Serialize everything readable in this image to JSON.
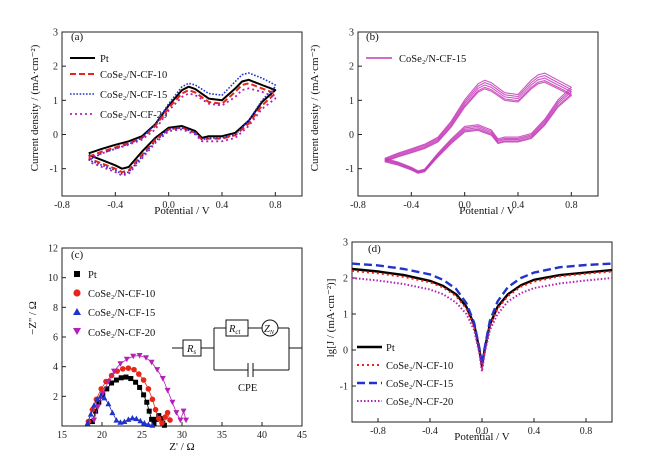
{
  "figure": {
    "colors": {
      "pt": "#000000",
      "cf10": "#e8251b",
      "cf15": "#2233cc",
      "cf20": "#b51fb8",
      "single": "#c43ab9"
    }
  },
  "chart_data": [
    {
      "panel": "(a)",
      "type": "line",
      "xlabel": "Potential / V",
      "ylabel": "Current density / (mA·cm⁻²)",
      "xlim": [
        -0.8,
        1.0
      ],
      "ylim": [
        -1.8,
        3.0
      ],
      "xticks": [
        "-0.8",
        "-0.4",
        "0.0",
        "0.4",
        "0.8"
      ],
      "yticks": [
        "-1",
        "0",
        "1",
        "2",
        "3"
      ],
      "legend": [
        "Pt",
        "CoSe₂/N-CF-10",
        "CoSe₂/N-CF-15",
        "CoSe₂/N-CF-20"
      ],
      "series": [
        {
          "name": "Pt",
          "x": [
            -0.6,
            -0.5,
            -0.4,
            -0.3,
            -0.2,
            -0.1,
            0.0,
            0.1,
            0.15,
            0.2,
            0.3,
            0.4,
            0.5,
            0.55,
            0.6,
            0.7,
            0.8,
            0.8,
            0.7,
            0.6,
            0.5,
            0.4,
            0.3,
            0.25,
            0.2,
            0.1,
            0.0,
            -0.1,
            -0.2,
            -0.3,
            -0.35,
            -0.4,
            -0.5,
            -0.6
          ],
          "y": [
            -0.55,
            -0.42,
            -0.3,
            -0.2,
            -0.05,
            0.3,
            0.85,
            1.3,
            1.4,
            1.33,
            1.05,
            1.0,
            1.35,
            1.55,
            1.6,
            1.45,
            1.3,
            1.3,
            0.95,
            0.4,
            0.05,
            -0.05,
            -0.05,
            -0.1,
            0.1,
            0.25,
            0.2,
            -0.1,
            -0.5,
            -0.95,
            -1.0,
            -0.9,
            -0.75,
            -0.6
          ]
        },
        {
          "name": "CoSe₂/N-CF-10",
          "x": [
            -0.6,
            -0.5,
            -0.4,
            -0.3,
            -0.2,
            -0.1,
            0.0,
            0.1,
            0.15,
            0.2,
            0.3,
            0.4,
            0.5,
            0.55,
            0.6,
            0.7,
            0.8,
            0.8,
            0.7,
            0.6,
            0.5,
            0.4,
            0.3,
            0.25,
            0.2,
            0.1,
            0.0,
            -0.1,
            -0.2,
            -0.3,
            -0.35,
            -0.4,
            -0.5,
            -0.6
          ],
          "y": [
            -0.65,
            -0.5,
            -0.38,
            -0.25,
            -0.1,
            0.25,
            0.78,
            1.2,
            1.3,
            1.23,
            0.95,
            0.9,
            1.25,
            1.45,
            1.5,
            1.35,
            1.2,
            1.2,
            0.85,
            0.32,
            -0.02,
            -0.12,
            -0.12,
            -0.15,
            0.05,
            0.2,
            0.15,
            -0.15,
            -0.6,
            -1.05,
            -1.1,
            -1.0,
            -0.85,
            -0.7
          ]
        },
        {
          "name": "CoSe₂/N-CF-15",
          "x": [
            -0.6,
            -0.5,
            -0.4,
            -0.3,
            -0.2,
            -0.1,
            0.0,
            0.1,
            0.15,
            0.2,
            0.3,
            0.4,
            0.5,
            0.55,
            0.6,
            0.7,
            0.8,
            0.8,
            0.7,
            0.6,
            0.5,
            0.4,
            0.3,
            0.25,
            0.2,
            0.1,
            0.0,
            -0.1,
            -0.2,
            -0.3,
            -0.35,
            -0.4,
            -0.5,
            -0.6
          ],
          "y": [
            -0.75,
            -0.55,
            -0.42,
            -0.28,
            -0.1,
            0.3,
            0.9,
            1.4,
            1.5,
            1.45,
            1.2,
            1.15,
            1.55,
            1.75,
            1.8,
            1.65,
            1.45,
            1.4,
            1.0,
            0.4,
            0.0,
            -0.1,
            -0.1,
            -0.15,
            0.05,
            0.2,
            0.15,
            -0.2,
            -0.65,
            -1.1,
            -1.15,
            -1.05,
            -0.9,
            -0.75
          ]
        },
        {
          "name": "CoSe₂/N-CF-20",
          "x": [
            -0.6,
            -0.5,
            -0.4,
            -0.3,
            -0.2,
            -0.1,
            0.0,
            0.1,
            0.15,
            0.2,
            0.3,
            0.4,
            0.5,
            0.55,
            0.6,
            0.7,
            0.8,
            0.8,
            0.7,
            0.6,
            0.5,
            0.4,
            0.3,
            0.25,
            0.2,
            0.1,
            0.0,
            -0.1,
            -0.2,
            -0.3,
            -0.35,
            -0.4,
            -0.5,
            -0.6
          ],
          "y": [
            -0.7,
            -0.55,
            -0.42,
            -0.3,
            -0.15,
            0.15,
            0.7,
            1.1,
            1.2,
            1.15,
            0.9,
            0.85,
            1.1,
            1.3,
            1.35,
            1.25,
            1.1,
            1.05,
            0.75,
            0.25,
            -0.1,
            -0.2,
            -0.2,
            -0.2,
            0.0,
            0.15,
            0.1,
            -0.25,
            -0.7,
            -1.15,
            -1.2,
            -1.1,
            -0.95,
            -0.8
          ]
        }
      ]
    },
    {
      "panel": "(b)",
      "type": "line",
      "xlabel": "Potential / V",
      "ylabel": "Current density / (mA·cm⁻²)",
      "xlim": [
        -0.8,
        1.0
      ],
      "ylim": [
        -1.8,
        3.0
      ],
      "xticks": [
        "-0.8",
        "-0.4",
        "0.0",
        "0.4",
        "0.8"
      ],
      "yticks": [
        "-1",
        "0",
        "1",
        "2",
        "3"
      ],
      "legend": [
        "CoSe₂/N-CF-15"
      ],
      "series": [
        {
          "name": "CoSe₂/N-CF-15",
          "x": [
            -0.6,
            -0.5,
            -0.4,
            -0.3,
            -0.2,
            -0.1,
            0.0,
            0.1,
            0.15,
            0.2,
            0.3,
            0.4,
            0.5,
            0.55,
            0.6,
            0.7,
            0.8,
            0.8,
            0.7,
            0.6,
            0.5,
            0.4,
            0.3,
            0.25,
            0.2,
            0.1,
            0.0,
            -0.1,
            -0.2,
            -0.3,
            -0.35,
            -0.4,
            -0.5,
            -0.6
          ],
          "y": [
            -0.75,
            -0.6,
            -0.48,
            -0.35,
            -0.15,
            0.3,
            0.9,
            1.35,
            1.45,
            1.38,
            1.1,
            1.05,
            1.45,
            1.6,
            1.65,
            1.45,
            1.25,
            1.25,
            0.9,
            0.35,
            -0.05,
            -0.15,
            -0.15,
            -0.2,
            0.05,
            0.2,
            0.15,
            -0.2,
            -0.6,
            -1.05,
            -1.1,
            -1.0,
            -0.85,
            -0.75
          ]
        }
      ]
    },
    {
      "panel": "(c)",
      "type": "scatter",
      "xlabel": "Z' / Ω",
      "ylabel": "−Z'' / Ω",
      "xlim": [
        15,
        45
      ],
      "ylim": [
        0,
        12
      ],
      "xticks": [
        "15",
        "20",
        "25",
        "30",
        "35",
        "40",
        "45"
      ],
      "yticks": [
        "2",
        "4",
        "6",
        "8",
        "10",
        "12"
      ],
      "legend": [
        "Pt",
        "CoSe₂/N-CF-10",
        "CoSe₂/N-CF-15",
        "CoSe₂/N-CF-20"
      ],
      "inset_labels": {
        "rs": "R",
        "rs_sub": "s",
        "rct": "R",
        "rct_sub": "ct",
        "zn": "Z",
        "zn_sub": "N",
        "cpe": "CPE"
      },
      "series": [
        {
          "name": "Pt",
          "x": [
            18.8,
            19.2,
            19.6,
            20.1,
            20.6,
            21.2,
            21.8,
            22.4,
            23.0,
            23.6,
            24.2,
            24.7,
            25.2,
            25.6,
            25.9,
            26.2,
            26.5,
            26.8,
            27.1,
            27.4,
            27.6,
            27.8
          ],
          "y": [
            0.3,
            1.0,
            1.6,
            2.1,
            2.5,
            2.9,
            3.1,
            3.25,
            3.3,
            3.2,
            2.95,
            2.6,
            2.1,
            1.6,
            1.0,
            0.45,
            0.2,
            0.45,
            0.7,
            0.5,
            0.2,
            0.05
          ]
        },
        {
          "name": "CoSe₂/N-CF-10",
          "x": [
            18.3,
            18.8,
            19.3,
            19.9,
            20.5,
            21.2,
            21.9,
            22.6,
            23.3,
            24.0,
            24.6,
            25.2,
            25.8,
            26.3,
            26.7,
            27.1,
            27.5,
            27.9,
            28.2,
            28.5
          ],
          "y": [
            0.3,
            1.1,
            1.8,
            2.5,
            3.0,
            3.4,
            3.7,
            3.85,
            3.9,
            3.8,
            3.5,
            3.1,
            2.5,
            1.8,
            1.1,
            0.5,
            0.2,
            0.6,
            0.9,
            0.4
          ]
        },
        {
          "name": "CoSe₂/N-CF-15",
          "x": [
            18.2,
            18.6,
            19.0,
            19.4,
            19.8,
            20.3,
            20.8,
            21.3,
            21.8,
            22.3,
            22.8,
            23.3,
            23.8,
            24.3,
            24.8,
            25.3,
            25.8,
            26.3
          ],
          "y": [
            0.2,
            0.8,
            1.4,
            1.8,
            2.0,
            1.9,
            1.5,
            0.9,
            0.4,
            0.25,
            0.3,
            0.45,
            0.55,
            0.5,
            0.35,
            0.2,
            0.1,
            0.05
          ]
        },
        {
          "name": "CoSe₂/N-CF-20",
          "x": [
            19.0,
            19.5,
            20.1,
            20.8,
            21.5,
            22.3,
            23.1,
            23.9,
            24.7,
            25.5,
            26.2,
            26.9,
            27.6,
            28.2,
            28.8,
            29.3,
            29.8,
            30.2,
            30.5
          ],
          "y": [
            0.4,
            1.3,
            2.2,
            3.0,
            3.7,
            4.2,
            4.5,
            4.7,
            4.75,
            4.6,
            4.3,
            3.8,
            3.2,
            2.4,
            1.6,
            0.9,
            0.4,
            1.0,
            0.4
          ]
        }
      ]
    },
    {
      "panel": "(d)",
      "type": "line",
      "xlabel": "Potential / V",
      "ylabel": "lg[J / (mA·cm⁻²)]",
      "xlim": [
        -1.0,
        1.0
      ],
      "ylim": [
        -2.0,
        3.0
      ],
      "xticks": [
        "-0.8",
        "-0.4",
        "0.0",
        "0.4",
        "0.8"
      ],
      "yticks": [
        "-1",
        "0",
        "1",
        "2",
        "3"
      ],
      "legend": [
        "Pt",
        "CoSe₂/N-CF-10",
        "CoSe₂/N-CF-15",
        "CoSe₂/N-CF-20"
      ],
      "series": [
        {
          "name": "Pt",
          "x": [
            -1.0,
            -0.8,
            -0.6,
            -0.4,
            -0.3,
            -0.2,
            -0.12,
            -0.06,
            -0.02,
            0.0,
            0.02,
            0.06,
            0.12,
            0.2,
            0.3,
            0.4,
            0.6,
            0.8,
            1.0
          ],
          "y": [
            2.25,
            2.18,
            2.08,
            1.92,
            1.78,
            1.55,
            1.2,
            0.7,
            0.0,
            -0.45,
            0.0,
            0.7,
            1.2,
            1.55,
            1.8,
            1.95,
            2.08,
            2.15,
            2.22
          ]
        },
        {
          "name": "CoSe₂/N-CF-10",
          "x": [
            -1.0,
            -0.8,
            -0.6,
            -0.4,
            -0.3,
            -0.2,
            -0.12,
            -0.06,
            -0.02,
            0.0,
            0.02,
            0.06,
            0.12,
            0.2,
            0.3,
            0.4,
            0.6,
            0.8,
            1.0
          ],
          "y": [
            2.2,
            2.13,
            2.03,
            1.88,
            1.74,
            1.5,
            1.15,
            0.65,
            -0.05,
            -0.5,
            -0.05,
            0.65,
            1.15,
            1.5,
            1.76,
            1.9,
            2.05,
            2.12,
            2.18
          ]
        },
        {
          "name": "CoSe₂/N-CF-15",
          "x": [
            -1.0,
            -0.8,
            -0.6,
            -0.4,
            -0.3,
            -0.2,
            -0.12,
            -0.06,
            -0.02,
            0.0,
            0.02,
            0.06,
            0.12,
            0.2,
            0.3,
            0.4,
            0.6,
            0.8,
            1.0
          ],
          "y": [
            2.4,
            2.35,
            2.25,
            2.1,
            1.95,
            1.7,
            1.3,
            0.75,
            0.05,
            -0.4,
            0.05,
            0.8,
            1.35,
            1.75,
            2.0,
            2.15,
            2.3,
            2.36,
            2.4
          ]
        },
        {
          "name": "CoSe₂/N-CF-20",
          "x": [
            -1.0,
            -0.8,
            -0.6,
            -0.4,
            -0.3,
            -0.2,
            -0.12,
            -0.06,
            -0.02,
            0.0,
            0.02,
            0.06,
            0.12,
            0.2,
            0.3,
            0.4,
            0.6,
            0.8,
            1.0
          ],
          "y": [
            2.0,
            1.93,
            1.83,
            1.68,
            1.55,
            1.32,
            1.0,
            0.55,
            -0.1,
            -0.6,
            -0.1,
            0.55,
            1.0,
            1.35,
            1.58,
            1.72,
            1.85,
            1.93,
            2.0
          ]
        }
      ]
    }
  ]
}
